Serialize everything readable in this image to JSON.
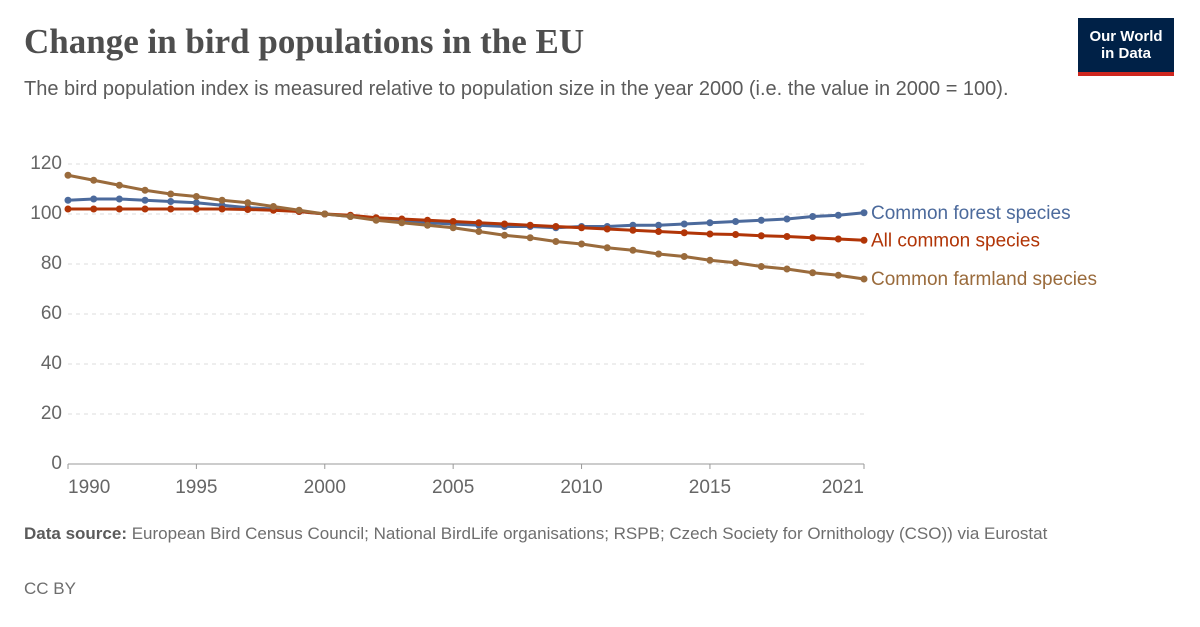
{
  "chart_data": {
    "type": "line",
    "title": "Change in bird populations in the EU",
    "subtitle": "The bird population index is measured relative to population size in the year 2000 (i.e. the value in 2000 = 100).",
    "logo": "Our World in Data",
    "source_label": "Data source:",
    "source": "European Bird Census Council; National BirdLife organisations; RSPB; Czech Society for Ornithology (CSO)) via Eurostat",
    "license": "CC BY",
    "x": [
      1990,
      1991,
      1992,
      1993,
      1994,
      1995,
      1996,
      1997,
      1998,
      1999,
      2000,
      2001,
      2002,
      2003,
      2004,
      2005,
      2006,
      2007,
      2008,
      2009,
      2010,
      2011,
      2012,
      2013,
      2014,
      2015,
      2016,
      2017,
      2018,
      2019,
      2020,
      2021
    ],
    "xlim": [
      1990,
      2021
    ],
    "xticks": [
      1990,
      1995,
      2000,
      2005,
      2010,
      2015,
      2021
    ],
    "ylim": [
      0,
      120
    ],
    "yticks": [
      0,
      20,
      40,
      60,
      80,
      100,
      120
    ],
    "grid": true,
    "series": [
      {
        "name": "Common forest species",
        "color": "#4c6a9c",
        "values": [
          105.5,
          106,
          106,
          105.5,
          105,
          104.5,
          103.5,
          102.5,
          102,
          101,
          100,
          99,
          98,
          97,
          96.5,
          96,
          95.5,
          95,
          95,
          94.5,
          95,
          95,
          95.5,
          95.5,
          96,
          96.5,
          97,
          97.5,
          98,
          99,
          99.5,
          100.5
        ]
      },
      {
        "name": "All common species",
        "color": "#b13507",
        "values": [
          102,
          102,
          102,
          102,
          102,
          102,
          102,
          101.8,
          101.5,
          101,
          100,
          99.5,
          98.5,
          98,
          97.5,
          97,
          96.5,
          96,
          95.5,
          95,
          94.5,
          94,
          93.5,
          93,
          92.5,
          92,
          91.8,
          91.3,
          91,
          90.5,
          90,
          89.5
        ]
      },
      {
        "name": "Common farmland species",
        "color": "#9a6b3c",
        "values": [
          115.5,
          113.5,
          111.5,
          109.5,
          108,
          107,
          105.5,
          104.5,
          103,
          101.5,
          100,
          99,
          97.5,
          96.5,
          95.5,
          94.5,
          93,
          91.5,
          90.5,
          89,
          88,
          86.5,
          85.5,
          84,
          83,
          81.5,
          80.5,
          79,
          78,
          76.5,
          75.5,
          74
        ]
      }
    ]
  }
}
